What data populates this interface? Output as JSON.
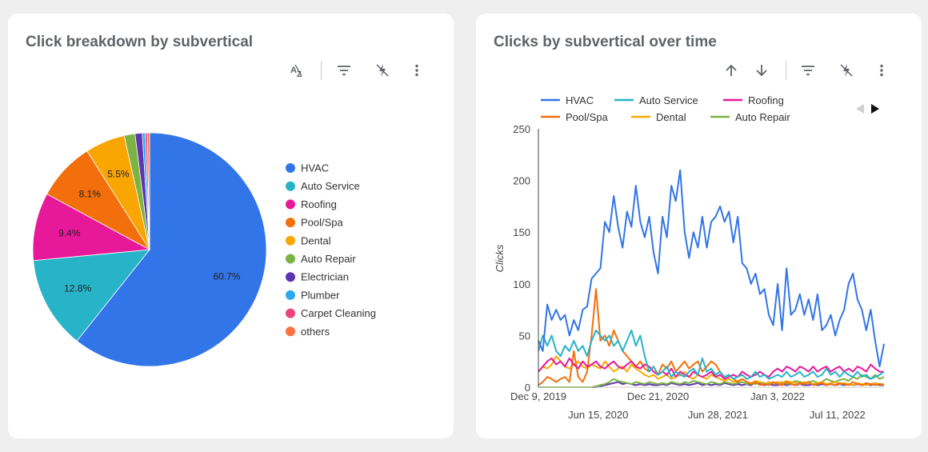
{
  "pie_card": {
    "title": "Click breakdown by subvertical",
    "toolbar": [
      "sort-az-icon",
      "filter-icon",
      "cross-filter-off-icon",
      "more-vert-icon"
    ]
  },
  "line_card": {
    "title": "Clicks by subvertical over time",
    "toolbar": [
      "arrow-up-icon",
      "arrow-down-icon",
      "filter-icon",
      "cross-filter-off-icon",
      "more-vert-icon"
    ],
    "legend_paging": [
      "prev-page-icon (disabled)",
      "next-page-icon"
    ]
  },
  "chart_data": [
    {
      "type": "pie",
      "title": "Click breakdown by subvertical",
      "legend_position": "right",
      "slices": [
        {
          "name": "HVAC",
          "value": 60.7,
          "label": "60.7%",
          "color": "#3275e8"
        },
        {
          "name": "Auto Service",
          "value": 12.8,
          "label": "12.8%",
          "color": "#28b4c8"
        },
        {
          "name": "Roofing",
          "value": 9.4,
          "label": "9.4%",
          "color": "#e8189a"
        },
        {
          "name": "Pool/Spa",
          "value": 8.1,
          "label": "8.1%",
          "color": "#f26f0c"
        },
        {
          "name": "Dental",
          "value": 5.5,
          "label": "5.5%",
          "color": "#f9a602"
        },
        {
          "name": "Auto Repair",
          "value": 1.5,
          "label": "",
          "color": "#7cb342"
        },
        {
          "name": "Electrician",
          "value": 1.0,
          "label": "",
          "color": "#5e35b1"
        },
        {
          "name": "Plumber",
          "value": 0.4,
          "label": "",
          "color": "#2aa8f2"
        },
        {
          "name": "Carpet Cleaning",
          "value": 0.3,
          "label": "",
          "color": "#e8467c"
        },
        {
          "name": "others",
          "value": 0.3,
          "label": "",
          "color": "#ff7043"
        }
      ]
    },
    {
      "type": "line",
      "title": "Clicks by subvertical over time",
      "xlabel": "",
      "ylabel": "Clicks",
      "ylim": [
        0,
        250
      ],
      "yticks": [
        "0",
        "50",
        "100",
        "150",
        "200",
        "250"
      ],
      "xlim": [
        "2019-12-09",
        "2022-12-05"
      ],
      "xticks": [
        {
          "label": "Dec 9, 2019",
          "date": "2019-12-09",
          "row": 1
        },
        {
          "label": "Jun 15, 2020",
          "date": "2020-06-15",
          "row": 2
        },
        {
          "label": "Dec 21, 2020",
          "date": "2020-12-21",
          "row": 1
        },
        {
          "label": "Jun 28, 2021",
          "date": "2021-06-28",
          "row": 2
        },
        {
          "label": "Jan 3, 2022",
          "date": "2022-01-03",
          "row": 1
        },
        {
          "label": "Jul 11, 2022",
          "date": "2022-07-11",
          "row": 2
        }
      ],
      "grid": false,
      "legend_position": "top",
      "x": [
        "2019-12-09",
        "2019-12-23",
        "2020-01-06",
        "2020-01-20",
        "2020-02-03",
        "2020-02-17",
        "2020-03-02",
        "2020-03-16",
        "2020-03-30",
        "2020-04-13",
        "2020-04-27",
        "2020-05-11",
        "2020-05-25",
        "2020-06-08",
        "2020-06-22",
        "2020-07-06",
        "2020-07-20",
        "2020-08-03",
        "2020-08-17",
        "2020-08-31",
        "2020-09-14",
        "2020-09-28",
        "2020-10-12",
        "2020-10-26",
        "2020-11-09",
        "2020-11-23",
        "2020-12-07",
        "2020-12-21",
        "2021-01-04",
        "2021-01-18",
        "2021-02-01",
        "2021-02-15",
        "2021-03-01",
        "2021-03-15",
        "2021-03-29",
        "2021-04-12",
        "2021-04-26",
        "2021-05-10",
        "2021-05-24",
        "2021-06-07",
        "2021-06-21",
        "2021-07-05",
        "2021-07-19",
        "2021-08-02",
        "2021-08-16",
        "2021-08-30",
        "2021-09-13",
        "2021-09-27",
        "2021-10-11",
        "2021-10-25",
        "2021-11-08",
        "2021-11-22",
        "2021-12-06",
        "2021-12-20",
        "2022-01-03",
        "2022-01-17",
        "2022-01-31",
        "2022-02-14",
        "2022-02-28",
        "2022-03-14",
        "2022-03-28",
        "2022-04-11",
        "2022-04-25",
        "2022-05-09",
        "2022-05-23",
        "2022-06-06",
        "2022-06-20",
        "2022-07-04",
        "2022-07-18",
        "2022-08-01",
        "2022-08-15",
        "2022-08-29",
        "2022-09-12",
        "2022-09-26",
        "2022-10-10",
        "2022-10-24",
        "2022-11-07",
        "2022-11-21",
        "2022-12-05"
      ],
      "series": [
        {
          "name": "Electrician",
          "color": "#5e35b1",
          "in_visible_legend": false,
          "values": [
            0,
            0,
            0,
            0,
            0,
            0,
            0,
            0,
            0,
            0,
            0,
            0,
            0,
            0,
            1,
            2,
            3,
            4,
            5,
            3,
            4,
            3,
            2,
            3,
            2,
            3,
            2,
            2,
            3,
            2,
            4,
            3,
            2,
            3,
            2,
            3,
            4,
            2,
            3,
            2,
            3,
            2,
            4,
            3,
            2,
            3,
            2,
            3,
            2,
            5,
            3,
            2,
            3,
            2,
            2,
            3,
            2,
            3,
            2,
            3,
            2,
            2,
            3,
            2,
            3,
            2,
            3,
            2,
            3,
            2,
            3,
            2,
            3,
            2,
            3,
            2,
            3,
            2,
            2
          ]
        },
        {
          "name": "Auto Repair",
          "color": "#7cb342",
          "in_visible_legend": true,
          "values": [
            0,
            0,
            0,
            0,
            0,
            0,
            0,
            0,
            0,
            0,
            0,
            0,
            0,
            1,
            2,
            3,
            5,
            8,
            6,
            5,
            4,
            3,
            5,
            4,
            3,
            5,
            4,
            3,
            4,
            3,
            5,
            4,
            3,
            5,
            4,
            6,
            5,
            4,
            3,
            5,
            4,
            3,
            5,
            4,
            3,
            4,
            5,
            3,
            4,
            3,
            5,
            4,
            3,
            4,
            4,
            5,
            3,
            4,
            6,
            5,
            4,
            5,
            6,
            4,
            5,
            8,
            6,
            5,
            7,
            8,
            6,
            10,
            8,
            12,
            10,
            8,
            12,
            8,
            10
          ]
        },
        {
          "name": "Dental",
          "color": "#f9ab00",
          "in_visible_legend": true,
          "values": [
            15,
            20,
            18,
            22,
            30,
            25,
            20,
            18,
            22,
            25,
            20,
            18,
            22,
            20,
            18,
            25,
            20,
            15,
            18,
            20,
            15,
            22,
            18,
            15,
            12,
            10,
            12,
            8,
            10,
            12,
            8,
            10,
            12,
            15,
            10,
            8,
            12,
            10,
            8,
            12,
            10,
            8,
            6,
            8,
            5,
            6,
            8,
            5,
            4,
            6,
            5,
            3,
            5,
            4,
            5,
            4,
            6,
            5,
            4,
            3,
            5,
            4,
            3,
            4,
            5,
            3,
            4,
            5,
            3,
            4,
            3,
            2,
            4,
            3,
            2,
            3,
            4,
            3,
            3
          ]
        },
        {
          "name": "Pool/Spa",
          "color": "#f26f0c",
          "in_visible_legend": true,
          "values": [
            2,
            5,
            10,
            8,
            5,
            8,
            10,
            5,
            35,
            10,
            5,
            15,
            50,
            95,
            45,
            50,
            40,
            55,
            45,
            35,
            30,
            25,
            20,
            25,
            18,
            15,
            20,
            12,
            22,
            18,
            25,
            15,
            20,
            25,
            18,
            22,
            25,
            15,
            20,
            25,
            22,
            15,
            10,
            12,
            8,
            5,
            8,
            5,
            3,
            5,
            2,
            3,
            2,
            5,
            3,
            2,
            5,
            3,
            2,
            4,
            3,
            5,
            2,
            3,
            4,
            2,
            3,
            2,
            4,
            3,
            2,
            5,
            3,
            2,
            4,
            3,
            2,
            3,
            2
          ]
        },
        {
          "name": "Roofing",
          "color": "#e8189a",
          "in_visible_legend": true,
          "values": [
            15,
            20,
            25,
            28,
            22,
            25,
            20,
            28,
            22,
            18,
            25,
            20,
            22,
            25,
            20,
            18,
            22,
            25,
            20,
            18,
            22,
            25,
            20,
            18,
            22,
            20,
            15,
            12,
            15,
            12,
            18,
            10,
            15,
            12,
            10,
            15,
            12,
            10,
            12,
            15,
            10,
            12,
            8,
            10,
            12,
            10,
            15,
            12,
            10,
            12,
            15,
            12,
            10,
            15,
            18,
            15,
            20,
            18,
            15,
            20,
            18,
            15,
            20,
            15,
            18,
            20,
            15,
            18,
            20,
            15,
            18,
            15,
            20,
            18,
            15,
            22,
            18,
            15,
            15
          ]
        },
        {
          "name": "Auto Service",
          "color": "#28b4c8",
          "in_visible_legend": true,
          "values": [
            35,
            50,
            40,
            50,
            35,
            30,
            40,
            35,
            45,
            35,
            40,
            30,
            45,
            55,
            50,
            45,
            50,
            40,
            45,
            35,
            45,
            55,
            40,
            50,
            30,
            15,
            20,
            12,
            15,
            20,
            10,
            15,
            12,
            10,
            15,
            18,
            12,
            28,
            15,
            18,
            12,
            15,
            10,
            12,
            8,
            10,
            12,
            8,
            10,
            15,
            10,
            12,
            8,
            10,
            12,
            10,
            15,
            10,
            12,
            15,
            10,
            12,
            15,
            10,
            12,
            18,
            12,
            15,
            10,
            15,
            12,
            10,
            15,
            10,
            12,
            8,
            10,
            12,
            15
          ]
        },
        {
          "name": "HVAC",
          "color": "#3275e8",
          "in_visible_legend": true,
          "values": [
            45,
            35,
            80,
            65,
            75,
            65,
            70,
            50,
            65,
            55,
            75,
            78,
            105,
            110,
            115,
            160,
            150,
            185,
            155,
            135,
            170,
            155,
            195,
            160,
            145,
            165,
            130,
            110,
            165,
            145,
            195,
            180,
            210,
            150,
            125,
            150,
            135,
            165,
            135,
            160,
            165,
            175,
            160,
            170,
            140,
            165,
            120,
            115,
            100,
            110,
            90,
            95,
            70,
            60,
            100,
            55,
            115,
            70,
            75,
            90,
            70,
            85,
            65,
            90,
            55,
            60,
            70,
            50,
            65,
            75,
            100,
            110,
            85,
            75,
            55,
            75,
            45,
            20,
            42
          ]
        }
      ],
      "legend": [
        {
          "name": "HVAC",
          "color": "#3275e8"
        },
        {
          "name": "Auto Service",
          "color": "#28b4c8"
        },
        {
          "name": "Roofing",
          "color": "#e8189a"
        },
        {
          "name": "Pool/Spa",
          "color": "#f26f0c"
        },
        {
          "name": "Dental",
          "color": "#f9ab00"
        },
        {
          "name": "Auto Repair",
          "color": "#7cb342"
        }
      ]
    }
  ]
}
